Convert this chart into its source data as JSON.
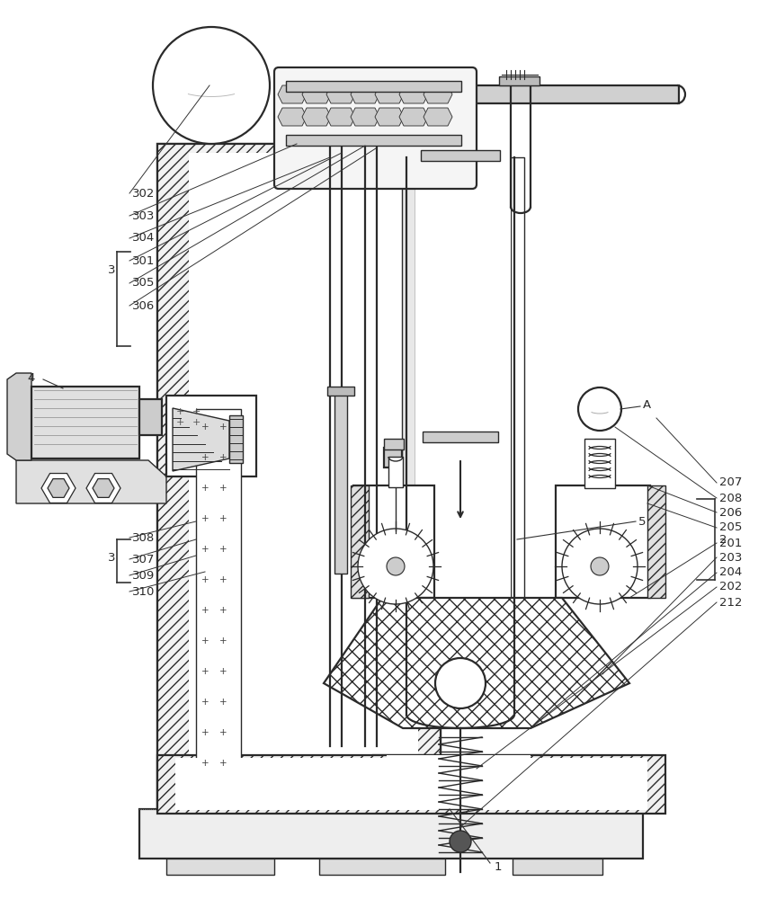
{
  "bg_color": "#ffffff",
  "lc": "#2a2a2a",
  "lw": 1.0,
  "lw2": 1.6,
  "label_fs": 9.5,
  "figsize": [
    8.54,
    10.0
  ],
  "dpi": 100
}
